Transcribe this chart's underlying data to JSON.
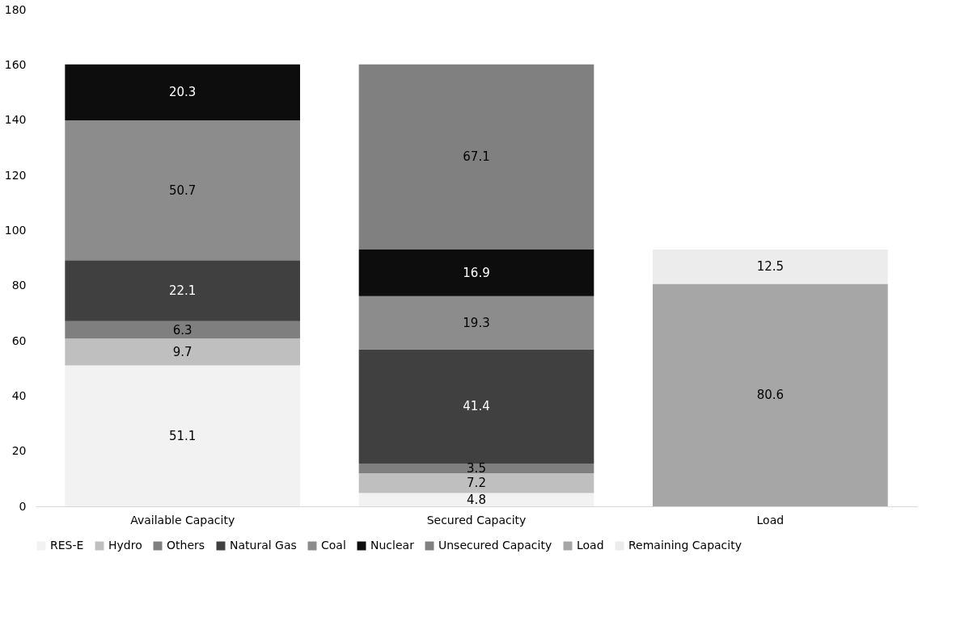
{
  "chart_data": {
    "type": "bar",
    "stacked": true,
    "categories": [
      "Available Capacity",
      "Secured Capacity",
      "Load"
    ],
    "series": [
      {
        "name": "RES-E",
        "color": "#f2f2f2",
        "values": [
          51.1,
          4.8,
          null
        ]
      },
      {
        "name": "Hydro",
        "color": "#bfbfbf",
        "values": [
          9.7,
          7.2,
          null
        ]
      },
      {
        "name": "Others",
        "color": "#7f7f7f",
        "values": [
          6.3,
          3.5,
          null
        ]
      },
      {
        "name": "Natural Gas",
        "color": "#404040",
        "values": [
          22.1,
          41.4,
          null
        ]
      },
      {
        "name": "Coal",
        "color": "#8c8c8c",
        "values": [
          50.7,
          19.3,
          null
        ]
      },
      {
        "name": "Nuclear",
        "color": "#0d0d0d",
        "values": [
          20.3,
          16.9,
          null
        ]
      },
      {
        "name": "Unsecured Capacity",
        "color": "#808080",
        "values": [
          null,
          67.1,
          null
        ]
      },
      {
        "name": "Load",
        "color": "#a6a6a6",
        "values": [
          null,
          null,
          80.6
        ]
      },
      {
        "name": "Remaining Capacity",
        "color": "#ececec",
        "values": [
          null,
          null,
          12.5
        ]
      }
    ],
    "ylim": [
      0,
      180
    ],
    "yticks": [
      0,
      20,
      40,
      60,
      80,
      100,
      120,
      140,
      160,
      180
    ],
    "data_labels": true,
    "legend": "bottom",
    "grid": false
  }
}
